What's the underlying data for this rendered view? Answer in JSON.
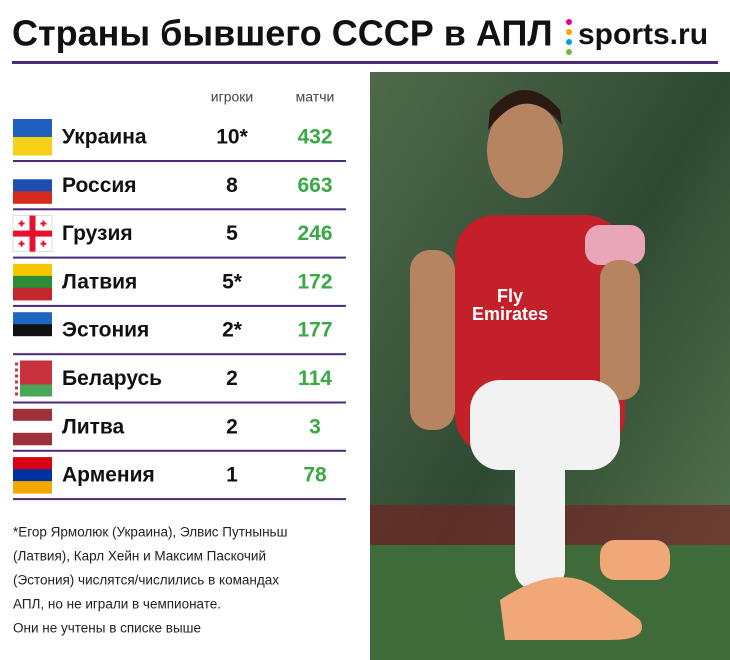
{
  "header": {
    "title": "Страны бывшего СССР в АПЛ",
    "logo": "sports.ru"
  },
  "table": {
    "columns": [
      "игроки",
      "матчи"
    ],
    "rows": [
      {
        "country": "Украина",
        "players": "10*",
        "matches": 432
      },
      {
        "country": "Россия",
        "players": "8",
        "matches": 663
      },
      {
        "country": "Грузия",
        "players": "5",
        "matches": 246
      },
      {
        "country": "Латвия",
        "players": "5*",
        "matches": 172
      },
      {
        "country": "Эстония",
        "players": "2*",
        "matches": 177
      },
      {
        "country": "Беларусь",
        "players": "2",
        "matches": 114
      },
      {
        "country": "Литва",
        "players": "2",
        "matches": 3
      },
      {
        "country": "Армения",
        "players": "1",
        "matches": 78
      }
    ]
  },
  "footnote": [
    "*Егор Ярмолюк (Украина), Элвис Путныньш",
    "(Латвия), Карл Хейн и Максим Паскочий",
    "(Эстония) числятся/числились в командах",
    "АПЛ, но не играли в чемпионате.",
    "Они не учтены в списке выше"
  ]
}
